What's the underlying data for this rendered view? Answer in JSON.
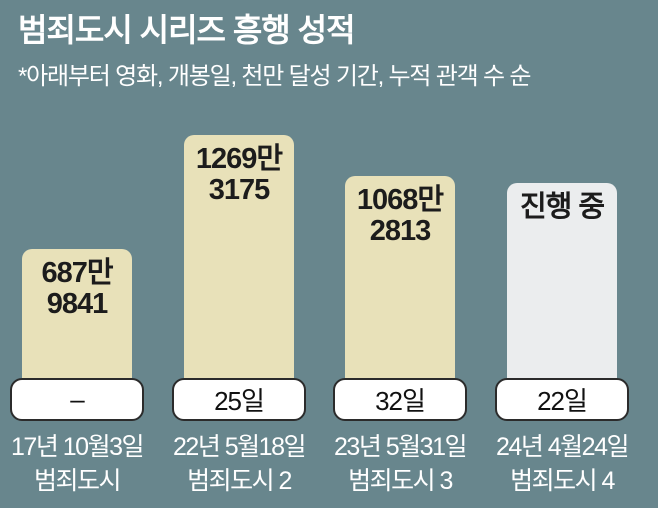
{
  "header": {
    "title": "범죄도시 시리즈 흥행 성적",
    "subtitle": "*아래부터 영화, 개봉일, 천만 달성 기간, 누적 관객 수 순"
  },
  "colors": {
    "background": "#68868d",
    "bar_released": "#e8e1b9",
    "bar_ongoing": "#ebedee",
    "bar_value_text": "#1c1c1c",
    "day_box_bg": "#ffffff",
    "day_box_border": "#2b2b2b",
    "label_text": "#ffffff"
  },
  "bars": [
    {
      "value_line1": "687만",
      "value_line2": "9841",
      "days": "–",
      "date": "17년 10월3일",
      "name": "범죄도시",
      "status": "released"
    },
    {
      "value_line1": "1269만",
      "value_line2": "3175",
      "days": "25일",
      "date": "22년 5월18일",
      "name": "범죄도시 2",
      "status": "released"
    },
    {
      "value_line1": "1068만",
      "value_line2": "2813",
      "days": "32일",
      "date": "23년 5월31일",
      "name": "범죄도시 3",
      "status": "released"
    },
    {
      "value_line1": "진행 중",
      "value_line2": "",
      "days": "22일",
      "date": "24년 4월24일",
      "name": "범죄도시 4",
      "status": "ongoing"
    }
  ],
  "chart_data": {
    "type": "bar",
    "title": "범죄도시 시리즈 흥행 성적",
    "subtitle": "*아래부터 영화, 개봉일, 천만 달성 기간, 누적 관객 수 순",
    "categories": [
      "범죄도시",
      "범죄도시 2",
      "범죄도시 3",
      "범죄도시 4"
    ],
    "release_dates": [
      "17년 10월3일",
      "22년 5월18일",
      "23년 5월31일",
      "24년 4월24일"
    ],
    "days_to_10m": [
      "–",
      "25일",
      "32일",
      "22일"
    ],
    "audience_labels": [
      "687만 9841",
      "1269만 3175",
      "1068만 2813",
      "진행 중"
    ],
    "audience_values": [
      6879841,
      12693175,
      10682813,
      null
    ],
    "series": [
      {
        "name": "누적 관객 수",
        "values": [
          6879841,
          12693175,
          10682813,
          null
        ]
      }
    ],
    "legend": "none",
    "grid": false,
    "orientation": "vertical"
  }
}
